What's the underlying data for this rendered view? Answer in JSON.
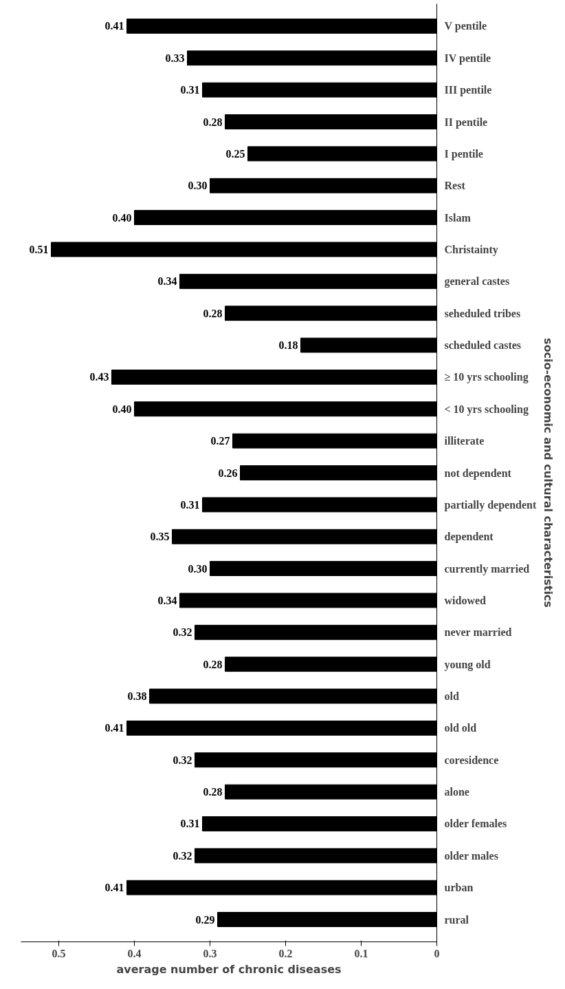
{
  "chart_data": {
    "type": "bar",
    "orientation": "horizontal",
    "xlabel": "average number of chronic diseases",
    "ylabel": "socio-economic and cultural characteristics",
    "categories": [
      "V pentile",
      "IV pentile",
      "III pentile",
      "II pentile",
      "I pentile",
      "Rest",
      "Islam",
      "Christainty",
      "general castes",
      "seheduled tribes",
      "scheduled castes",
      "≥ 10 yrs  schooling",
      "< 10 yrs  schooling",
      "illiterate",
      "not dependent",
      "partially dependent",
      "dependent",
      "currently married",
      "widowed",
      "never married",
      "young old",
      "old",
      "old old",
      "coresidence",
      "alone",
      "older females",
      "older males",
      "urban",
      "rural"
    ],
    "values": [
      0.41,
      0.33,
      0.31,
      0.28,
      0.25,
      0.3,
      0.4,
      0.51,
      0.34,
      0.28,
      0.18,
      0.43,
      0.4,
      0.27,
      0.26,
      0.31,
      0.35,
      0.3,
      0.34,
      0.32,
      0.28,
      0.38,
      0.41,
      0.32,
      0.28,
      0.31,
      0.32,
      0.41,
      0.29
    ],
    "value_labels": [
      "0.41",
      "0.33",
      "0.31",
      "0.28",
      "0.25",
      "0.30",
      "0.40",
      "0.51",
      "0.34",
      "0.28",
      "0.18",
      "0.43",
      "0.40",
      "0.27",
      "0.26",
      "0.31",
      "0.35",
      "0.30",
      "0.34",
      "0.32",
      "0.28",
      "0.38",
      "0.41",
      "0.32",
      "0.28",
      "0.31",
      "0.32",
      "0.41",
      "0.29"
    ],
    "color": "#000000",
    "xlim": [
      0.55,
      0
    ],
    "xticks": [
      0,
      0.1,
      0.2,
      0.3,
      0.4,
      0.5
    ],
    "grid": false
  }
}
